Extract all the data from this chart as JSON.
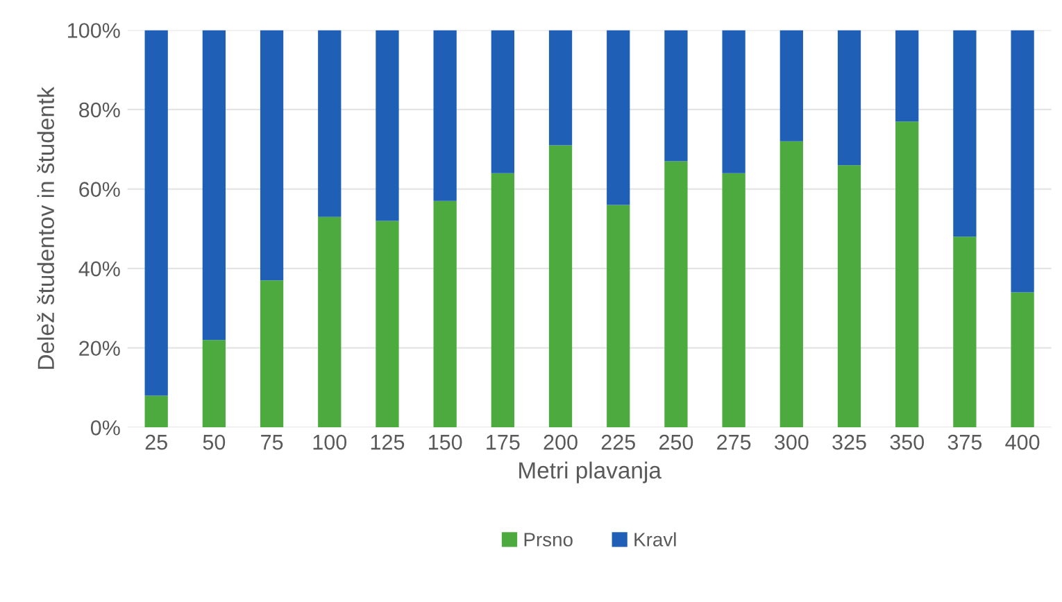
{
  "chart_data": {
    "type": "bar",
    "stacked": true,
    "xlabel": "Metri plavanja",
    "ylabel": "Delež študentov in študentk",
    "categories": [
      "25",
      "50",
      "75",
      "100",
      "125",
      "150",
      "175",
      "200",
      "225",
      "250",
      "275",
      "300",
      "325",
      "350",
      "375",
      "400"
    ],
    "series": [
      {
        "name": "Prsno",
        "color": "#4caa3f",
        "values": [
          8,
          22,
          37,
          53,
          52,
          57,
          64,
          71,
          56,
          67,
          64,
          72,
          66,
          77,
          48,
          34
        ]
      },
      {
        "name": "Kravl",
        "color": "#1f5fb5",
        "values": [
          92,
          78,
          63,
          47,
          48,
          43,
          36,
          29,
          44,
          33,
          36,
          28,
          34,
          23,
          52,
          66
        ]
      }
    ],
    "ylim": [
      0,
      100
    ],
    "yticks": [
      {
        "value": 0,
        "label": "0%"
      },
      {
        "value": 20,
        "label": "20%"
      },
      {
        "value": 40,
        "label": "40%"
      },
      {
        "value": 60,
        "label": "60%"
      },
      {
        "value": 80,
        "label": "80%"
      },
      {
        "value": 100,
        "label": "100%"
      }
    ],
    "grid": "y",
    "legend": "bottom"
  }
}
